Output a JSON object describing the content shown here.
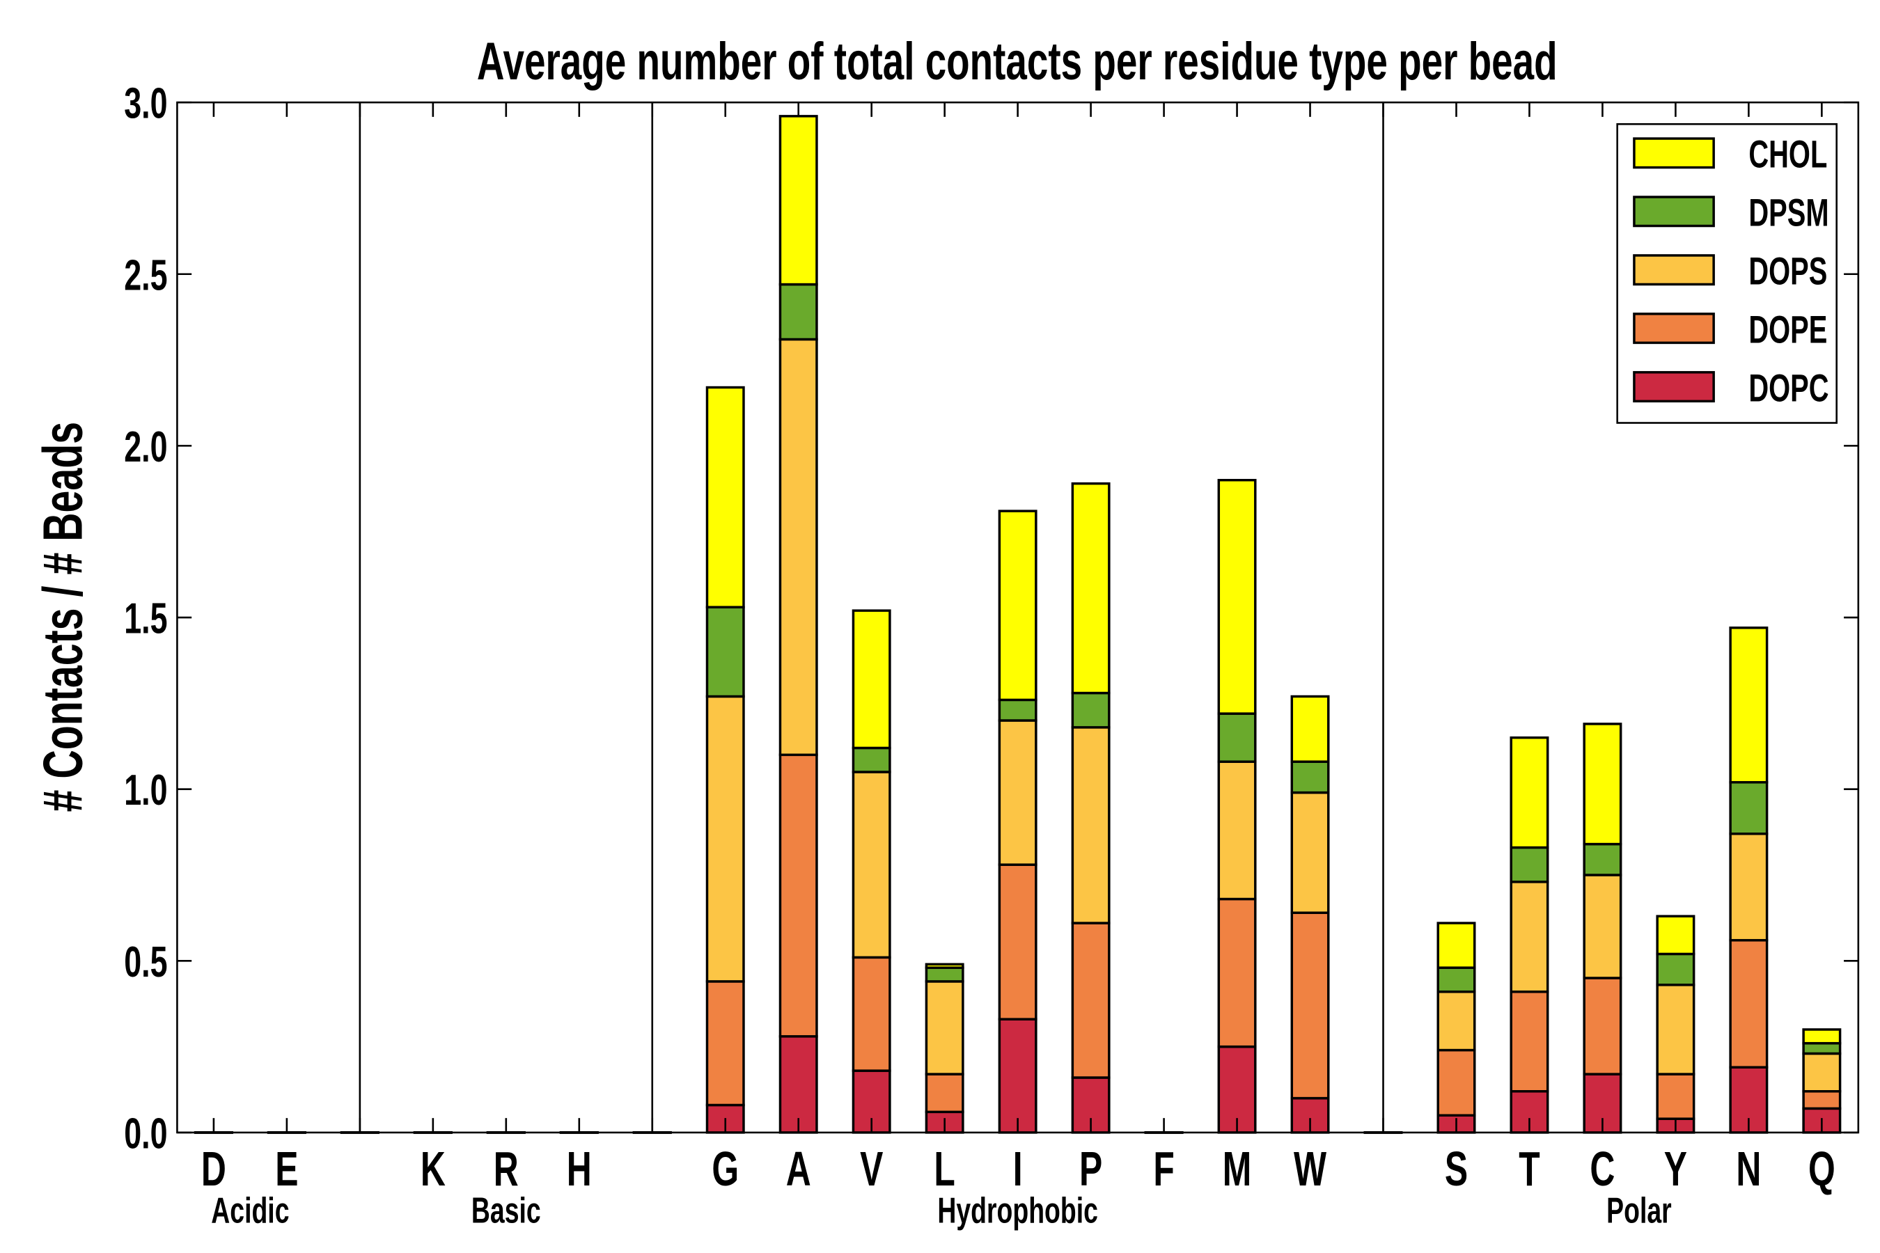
{
  "chart_data": {
    "type": "bar",
    "stacked": true,
    "title": "Average number of total contacts per residue type per bead",
    "xlabel": "",
    "ylabel": "# Contacts / # Beads",
    "ylim": [
      0,
      3.0
    ],
    "yticks": [
      "0.0",
      "0.5",
      "1.0",
      "1.5",
      "2.0",
      "2.5",
      "3.0"
    ],
    "grid": false,
    "legend_position": "top-right",
    "categories": [
      "D",
      "E",
      "",
      "K",
      "R",
      "H",
      "",
      "G",
      "A",
      "V",
      "L",
      "I",
      "P",
      "F",
      "M",
      "W",
      "",
      "S",
      "T",
      "C",
      "Y",
      "N",
      "Q"
    ],
    "groups": [
      {
        "label": "Acidic",
        "from": 0,
        "to": 1
      },
      {
        "label": "Basic",
        "from": 3,
        "to": 5
      },
      {
        "label": "Hydrophobic",
        "from": 7,
        "to": 15
      },
      {
        "label": "Polar",
        "from": 17,
        "to": 22
      }
    ],
    "separators_after": [
      2,
      6,
      16
    ],
    "series": [
      {
        "name": "DOPC",
        "color": "#cc2941",
        "values": [
          0,
          0,
          0,
          0,
          0,
          0,
          0,
          0.08,
          0.28,
          0.18,
          0.06,
          0.33,
          0.16,
          0,
          0.25,
          0.1,
          0,
          0.05,
          0.12,
          0.17,
          0.04,
          0.19,
          0.07
        ]
      },
      {
        "name": "DOPE",
        "color": "#f08242",
        "values": [
          0,
          0,
          0,
          0,
          0,
          0,
          0,
          0.36,
          0.82,
          0.33,
          0.11,
          0.45,
          0.45,
          0,
          0.43,
          0.54,
          0,
          0.19,
          0.29,
          0.28,
          0.13,
          0.37,
          0.05
        ]
      },
      {
        "name": "DOPS",
        "color": "#fcc545",
        "values": [
          0,
          0,
          0,
          0,
          0,
          0,
          0,
          0.83,
          1.21,
          0.54,
          0.27,
          0.42,
          0.57,
          0,
          0.4,
          0.35,
          0,
          0.17,
          0.32,
          0.3,
          0.26,
          0.31,
          0.11
        ]
      },
      {
        "name": "DPSM",
        "color": "#6aaa2c",
        "values": [
          0,
          0,
          0,
          0,
          0,
          0,
          0,
          0.26,
          0.16,
          0.07,
          0.04,
          0.06,
          0.1,
          0,
          0.14,
          0.09,
          0,
          0.07,
          0.1,
          0.09,
          0.09,
          0.15,
          0.03
        ]
      },
      {
        "name": "CHOL",
        "color": "#ffff00",
        "values": [
          0,
          0,
          0,
          0,
          0,
          0,
          0,
          0.64,
          0.49,
          0.4,
          0.01,
          0.55,
          0.61,
          0,
          0.68,
          0.19,
          0,
          0.13,
          0.32,
          0.35,
          0.11,
          0.45,
          0.04
        ]
      }
    ],
    "legend_order": [
      "CHOL",
      "DPSM",
      "DOPS",
      "DOPE",
      "DOPC"
    ]
  }
}
